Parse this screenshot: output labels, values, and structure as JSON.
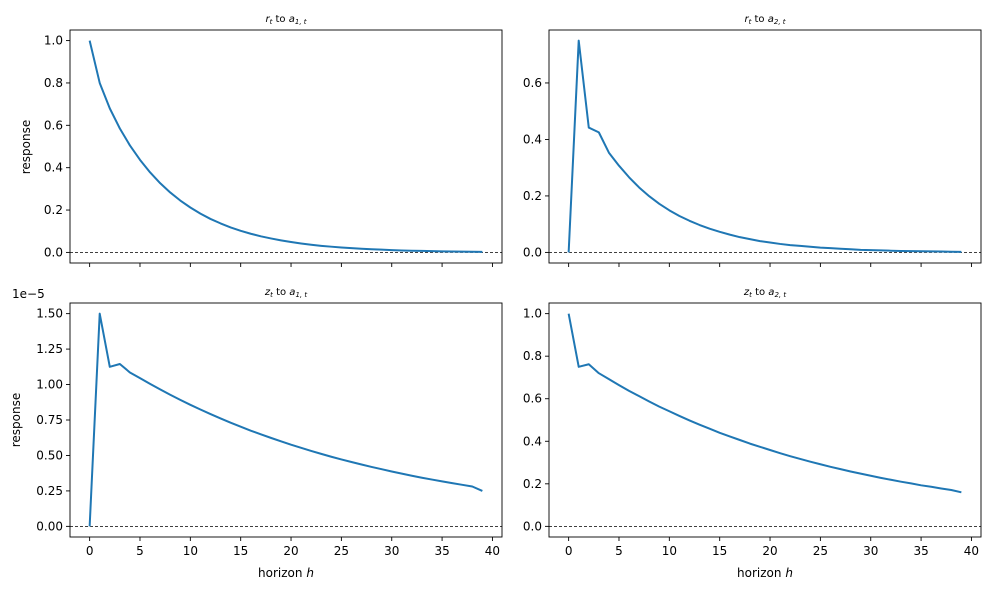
{
  "figure": {
    "xlabel_main": "horizon ",
    "xlabel_var": "h",
    "ylabel": "response",
    "offset_text": "1e−5"
  },
  "colors": {
    "series": "#1f77b4",
    "zero_line": "#000000",
    "axes": "#000000"
  },
  "chart_data": [
    {
      "type": "line",
      "title": "r_t to a_{1,t}",
      "title_parts": {
        "lhs": "r",
        "lhs_sub": "t",
        "mid": " to ",
        "rhs": "a",
        "rhs_sub": "1, t"
      },
      "xlabel": "",
      "ylabel": "response",
      "xlim": [
        -1.95,
        40.95
      ],
      "ylim": [
        -0.05,
        1.05
      ],
      "xticks": [
        0,
        5,
        10,
        15,
        20,
        25,
        30,
        35,
        40
      ],
      "xtick_labels_visible": false,
      "yticks": [
        0.0,
        0.2,
        0.4,
        0.6,
        0.8,
        1.0
      ],
      "ytick_labels": [
        "0.0",
        "0.2",
        "0.4",
        "0.6",
        "0.8",
        "1.0"
      ],
      "zero_line": true,
      "grid": false,
      "x": [
        0,
        1,
        2,
        3,
        4,
        5,
        6,
        7,
        8,
        9,
        10,
        11,
        12,
        13,
        14,
        15,
        16,
        17,
        18,
        19,
        20,
        21,
        22,
        23,
        24,
        25,
        26,
        27,
        28,
        29,
        30,
        31,
        32,
        33,
        34,
        35,
        36,
        37,
        38,
        39
      ],
      "y": [
        1.0,
        0.8,
        0.68,
        0.585,
        0.505,
        0.437,
        0.378,
        0.327,
        0.283,
        0.245,
        0.212,
        0.183,
        0.158,
        0.137,
        0.118,
        0.102,
        0.088,
        0.076,
        0.066,
        0.057,
        0.049,
        0.042,
        0.036,
        0.031,
        0.027,
        0.023,
        0.02,
        0.017,
        0.015,
        0.013,
        0.011,
        0.009,
        0.008,
        0.007,
        0.006,
        0.005,
        0.004,
        0.0035,
        0.003,
        0.0025
      ]
    },
    {
      "type": "line",
      "title": "r_t to a_{2,t}",
      "title_parts": {
        "lhs": "r",
        "lhs_sub": "t",
        "mid": " to ",
        "rhs": "a",
        "rhs_sub": "2, t"
      },
      "xlabel": "",
      "ylabel": "",
      "xlim": [
        -1.95,
        40.95
      ],
      "ylim": [
        -0.0375,
        0.7875
      ],
      "xticks": [
        0,
        5,
        10,
        15,
        20,
        25,
        30,
        35,
        40
      ],
      "xtick_labels_visible": false,
      "yticks": [
        0.0,
        0.2,
        0.4,
        0.6
      ],
      "ytick_labels": [
        "0.0",
        "0.2",
        "0.4",
        "0.6"
      ],
      "zero_line": true,
      "grid": false,
      "x": [
        0,
        1,
        2,
        3,
        4,
        5,
        6,
        7,
        8,
        9,
        10,
        11,
        12,
        13,
        14,
        15,
        16,
        17,
        18,
        19,
        20,
        21,
        22,
        23,
        24,
        25,
        26,
        27,
        28,
        29,
        30,
        31,
        32,
        33,
        34,
        35,
        36,
        37,
        38,
        39
      ],
      "y": [
        0.0,
        0.75,
        0.442,
        0.425,
        0.353,
        0.307,
        0.266,
        0.23,
        0.199,
        0.172,
        0.149,
        0.129,
        0.112,
        0.097,
        0.084,
        0.073,
        0.063,
        0.054,
        0.047,
        0.04,
        0.035,
        0.03,
        0.026,
        0.023,
        0.02,
        0.017,
        0.015,
        0.013,
        0.011,
        0.009,
        0.008,
        0.007,
        0.006,
        0.005,
        0.0045,
        0.004,
        0.0035,
        0.003,
        0.0025,
        0.002
      ]
    },
    {
      "type": "line",
      "title": "z_t to a_{1,t}",
      "title_parts": {
        "lhs": "z",
        "lhs_sub": "t",
        "mid": " to ",
        "rhs": "a",
        "rhs_sub": "1, t"
      },
      "xlabel": "horizon h",
      "ylabel": "response",
      "xlim": [
        -1.95,
        40.95
      ],
      "ylim": [
        -0.075,
        1.575
      ],
      "y_scale_note": "values in units of 1e-5",
      "xticks": [
        0,
        5,
        10,
        15,
        20,
        25,
        30,
        35,
        40
      ],
      "xtick_labels": [
        "0",
        "5",
        "10",
        "15",
        "20",
        "25",
        "30",
        "35",
        "40"
      ],
      "yticks": [
        0.0,
        0.25,
        0.5,
        0.75,
        1.0,
        1.25,
        1.5
      ],
      "ytick_labels": [
        "0.00",
        "0.25",
        "0.50",
        "0.75",
        "1.00",
        "1.25",
        "1.50"
      ],
      "zero_line": true,
      "grid": false,
      "x": [
        0,
        1,
        2,
        3,
        4,
        5,
        6,
        7,
        8,
        9,
        10,
        11,
        12,
        13,
        14,
        15,
        16,
        17,
        18,
        19,
        20,
        21,
        22,
        23,
        24,
        25,
        26,
        27,
        28,
        29,
        30,
        31,
        32,
        33,
        34,
        35,
        36,
        37,
        38,
        39
      ],
      "y": [
        0.0,
        1.5,
        1.125,
        1.145,
        1.085,
        1.045,
        1.005,
        0.966,
        0.928,
        0.892,
        0.857,
        0.824,
        0.792,
        0.761,
        0.731,
        0.703,
        0.675,
        0.649,
        0.624,
        0.6,
        0.576,
        0.554,
        0.532,
        0.511,
        0.491,
        0.472,
        0.454,
        0.436,
        0.419,
        0.403,
        0.387,
        0.372,
        0.357,
        0.343,
        0.33,
        0.317,
        0.305,
        0.293,
        0.281,
        0.25
      ]
    },
    {
      "type": "line",
      "title": "z_t to a_{2,t}",
      "title_parts": {
        "lhs": "z",
        "lhs_sub": "t",
        "mid": " to ",
        "rhs": "a",
        "rhs_sub": "2, t"
      },
      "xlabel": "horizon h",
      "ylabel": "",
      "xlim": [
        -1.95,
        40.95
      ],
      "ylim": [
        -0.05,
        1.05
      ],
      "xticks": [
        0,
        5,
        10,
        15,
        20,
        25,
        30,
        35,
        40
      ],
      "xtick_labels": [
        "0",
        "5",
        "10",
        "15",
        "20",
        "25",
        "30",
        "35",
        "40"
      ],
      "yticks": [
        0.0,
        0.2,
        0.4,
        0.6,
        0.8,
        1.0
      ],
      "ytick_labels": [
        "0.0",
        "0.2",
        "0.4",
        "0.6",
        "0.8",
        "1.0"
      ],
      "zero_line": true,
      "grid": false,
      "x": [
        0,
        1,
        2,
        3,
        4,
        5,
        6,
        7,
        8,
        9,
        10,
        11,
        12,
        13,
        14,
        15,
        16,
        17,
        18,
        19,
        20,
        21,
        22,
        23,
        24,
        25,
        26,
        27,
        28,
        29,
        30,
        31,
        32,
        33,
        34,
        35,
        36,
        37,
        38,
        39
      ],
      "y": [
        1.0,
        0.75,
        0.762,
        0.72,
        0.692,
        0.664,
        0.637,
        0.612,
        0.587,
        0.563,
        0.541,
        0.519,
        0.498,
        0.478,
        0.459,
        0.44,
        0.423,
        0.406,
        0.389,
        0.374,
        0.359,
        0.344,
        0.33,
        0.317,
        0.304,
        0.292,
        0.28,
        0.269,
        0.258,
        0.248,
        0.238,
        0.228,
        0.219,
        0.21,
        0.202,
        0.193,
        0.186,
        0.178,
        0.171,
        0.16
      ]
    }
  ]
}
